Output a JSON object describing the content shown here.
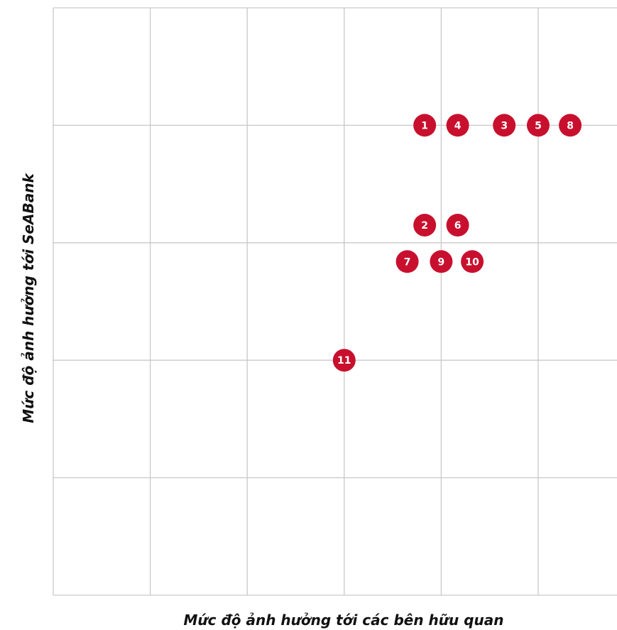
{
  "chart_data": {
    "type": "scatter",
    "title": "",
    "xlabel": "Mức độ ảnh hưởng tới các bên hữu quan",
    "ylabel": "Mức độ ảnh hưởng tới SeABank",
    "xlim": [
      0,
      5.8
    ],
    "ylim": [
      0,
      5
    ],
    "grid": true,
    "legend": "none",
    "point_color": "#c8102e",
    "grid_color": "#c9c9c9",
    "points": [
      {
        "label": "1",
        "x": 3.83,
        "y": 4.0
      },
      {
        "label": "4",
        "x": 4.17,
        "y": 4.0
      },
      {
        "label": "3",
        "x": 4.65,
        "y": 4.0
      },
      {
        "label": "5",
        "x": 5.0,
        "y": 4.0
      },
      {
        "label": "8",
        "x": 5.33,
        "y": 4.0
      },
      {
        "label": "2",
        "x": 3.83,
        "y": 3.15
      },
      {
        "label": "6",
        "x": 4.17,
        "y": 3.15
      },
      {
        "label": "7",
        "x": 3.65,
        "y": 2.84
      },
      {
        "label": "9",
        "x": 4.0,
        "y": 2.84
      },
      {
        "label": "10",
        "x": 4.32,
        "y": 2.84
      },
      {
        "label": "11",
        "x": 3.0,
        "y": 2.0
      }
    ]
  }
}
